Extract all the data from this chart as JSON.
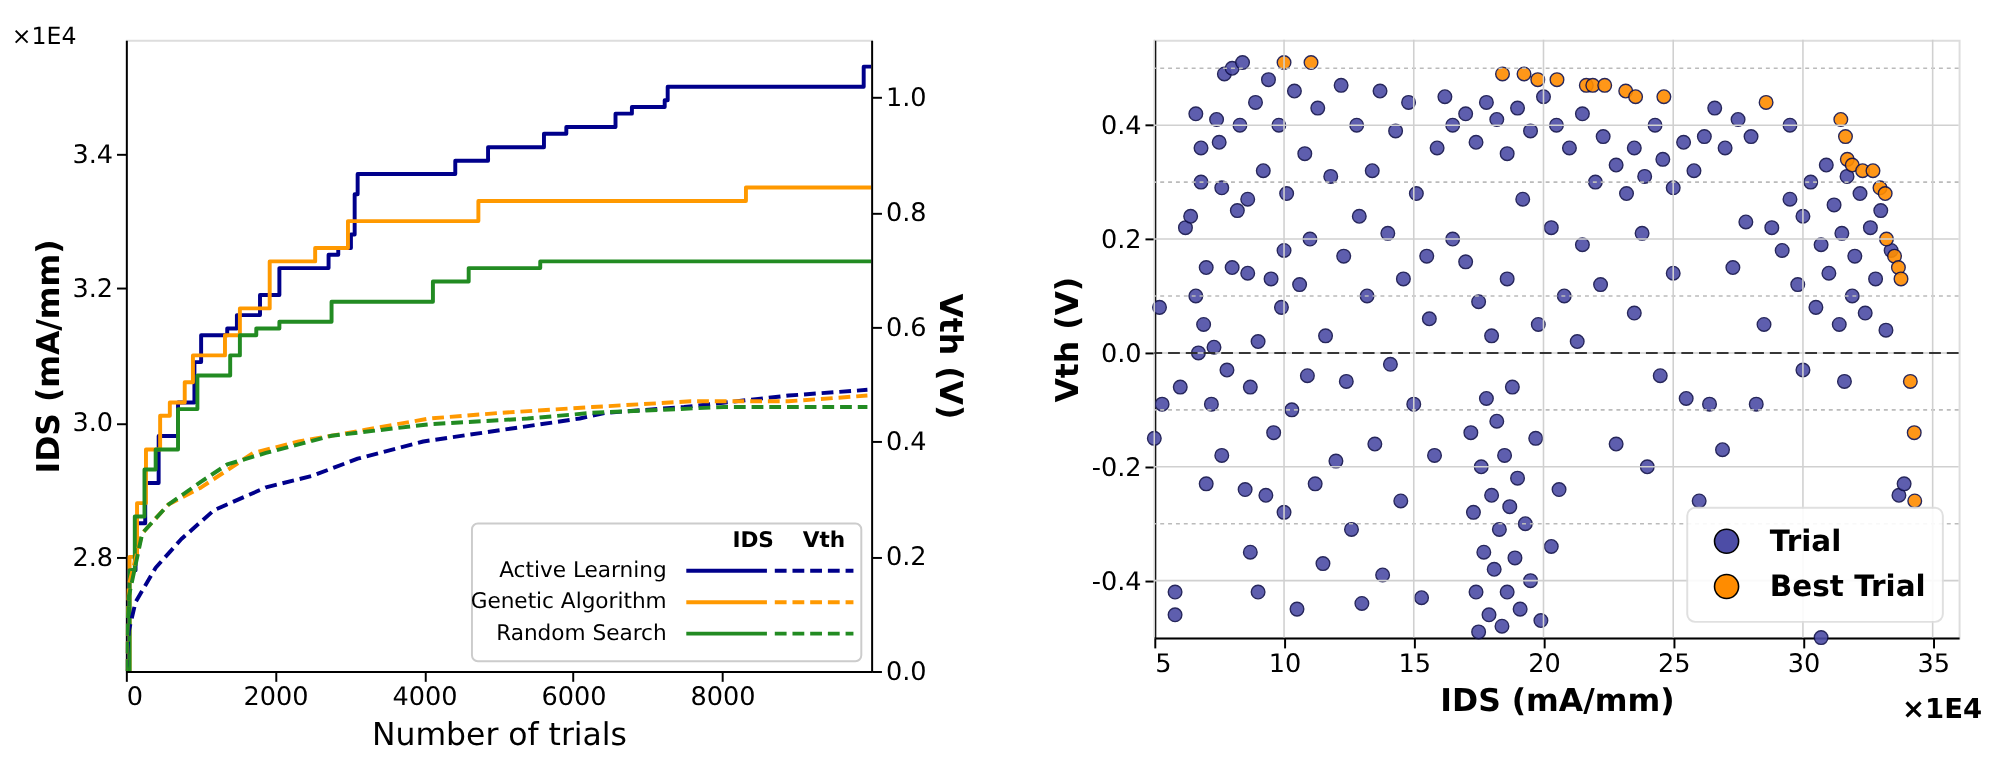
{
  "chart_data": [
    {
      "type": "step",
      "xlabel": "Number of trials",
      "ylabel": "IDS (mA/mm)",
      "y2label": "Vth (V)",
      "annotations": [
        "×1E4",
        "IDS",
        "Vth"
      ],
      "xlim": [
        0,
        10000
      ],
      "xticks": [
        0,
        2000,
        4000,
        6000,
        8000
      ],
      "ylim": [
        2.63,
        3.57
      ],
      "yticks": [
        2.8,
        {
          "value": 3.0,
          "label": "3.0"
        },
        3.2,
        3.4
      ],
      "y2lim": [
        0,
        1.1
      ],
      "y2ticks": [
        {
          "value": 0,
          "label": "0.0"
        },
        0.2,
        0.4,
        0.6,
        0.8,
        {
          "value": 1.0,
          "label": "1.0"
        }
      ],
      "grid": false,
      "legend": "bottom right",
      "series": [
        {
          "name": "Active Learning",
          "color": "#00008b",
          "x": [
            0,
            40,
            130,
            260,
            440,
            700,
            920,
            1010,
            1360,
            1490,
            1800,
            2060,
            2720,
            2850,
            3020,
            3070,
            3110,
            4420,
            4860,
            5610,
            5910,
            6570,
            6790,
            7230,
            7270,
            9900,
            10000
          ],
          "values": [
            2.63,
            2.78,
            2.85,
            2.91,
            2.98,
            3.03,
            3.09,
            3.13,
            3.14,
            3.16,
            3.19,
            3.23,
            3.25,
            3.26,
            3.28,
            3.34,
            3.37,
            3.39,
            3.41,
            3.43,
            3.44,
            3.46,
            3.47,
            3.48,
            3.5,
            3.53,
            3.53
          ]
        },
        {
          "name": "Genetic Algorithm",
          "color": "#ff9900",
          "x": [
            0,
            50,
            150,
            270,
            460,
            590,
            790,
            900,
            1330,
            1530,
            1930,
            2540,
            2980,
            4730,
            8320,
            10000
          ],
          "values": [
            2.63,
            2.8,
            2.88,
            2.96,
            3.01,
            3.03,
            3.06,
            3.1,
            3.13,
            3.17,
            3.24,
            3.26,
            3.3,
            3.33,
            3.35,
            3.35
          ]
        },
        {
          "name": "Random Search",
          "color": "#228b22",
          "x": [
            0,
            50,
            120,
            250,
            400,
            700,
            960,
            1400,
            1530,
            1750,
            2060,
            2760,
            4120,
            4600,
            5560,
            10000
          ],
          "values": [
            2.63,
            2.78,
            2.86,
            2.93,
            2.96,
            3.02,
            3.07,
            3.1,
            3.13,
            3.14,
            3.15,
            3.18,
            3.21,
            3.23,
            3.24,
            3.24
          ]
        },
        {
          "color": "#00008b",
          "type": "line",
          "line_style": "dashed",
          "axis": "y2",
          "x": [
            0,
            40,
            130,
            400,
            745,
            1180,
            1880,
            2500,
            3110,
            3990,
            5040,
            6090,
            6440,
            7490,
            8890,
            9950
          ],
          "values": [
            0,
            0.07,
            0.12,
            0.18,
            0.23,
            0.28,
            0.32,
            0.34,
            0.37,
            0.4,
            0.42,
            0.44,
            0.45,
            0.46,
            0.48,
            0.49
          ]
        },
        {
          "color": "#ff9900",
          "type": "line",
          "line_style": "dashed",
          "axis": "y2",
          "x": [
            0,
            40,
            220,
            570,
            1010,
            1710,
            2320,
            3200,
            4070,
            5040,
            6260,
            7580,
            8890,
            9950
          ],
          "values": [
            0,
            0.15,
            0.24,
            0.29,
            0.32,
            0.38,
            0.4,
            0.42,
            0.44,
            0.45,
            0.46,
            0.47,
            0.47,
            0.48
          ]
        },
        {
          "color": "#228b22",
          "type": "line",
          "line_style": "dashed",
          "axis": "y2",
          "x": [
            0,
            40,
            220,
            570,
            1010,
            1360,
            1880,
            2760,
            4070,
            5390,
            6260,
            8020,
            9950
          ],
          "values": [
            0,
            0.13,
            0.24,
            0.29,
            0.33,
            0.36,
            0.38,
            0.41,
            0.43,
            0.44,
            0.45,
            0.46,
            0.46
          ]
        }
      ]
    },
    {
      "type": "scatter",
      "xlabel": "IDS (mA/mm)",
      "ylabel": "Vth (V)",
      "annotations": [
        "×1E4"
      ],
      "xlim": [
        5,
        36
      ],
      "xticks": [
        5,
        10,
        15,
        20,
        25,
        30,
        35
      ],
      "ylim": [
        -0.5,
        0.55
      ],
      "yticks": [
        -0.4,
        {
          "value": -0.3,
          "label": null
        },
        -0.2,
        {
          "value": -0.1,
          "label": null
        },
        {
          "value": 0,
          "label": "0.0"
        },
        {
          "value": 0.1,
          "label": null
        },
        0.2,
        {
          "value": 0.3,
          "label": null
        },
        0.4,
        {
          "value": 0.5,
          "label": null
        }
      ],
      "grid": true,
      "legend": "bottom right",
      "marker": "circle",
      "ref_lines": [
        {
          "axis": "y",
          "value": 0,
          "color": "#000000",
          "line_style": "dashed"
        }
      ],
      "series": [
        {
          "name": "Trial",
          "color": "#4d4da6",
          "x": [
            5.2,
            5.3,
            5.0,
            5.8,
            5.8,
            6.0,
            6.2,
            6.4,
            6.6,
            6.6,
            6.7,
            6.8,
            6.9,
            6.8,
            7.0,
            7.0,
            7.2,
            7.3,
            7.4,
            7.5,
            7.6,
            7.6,
            7.7,
            7.8,
            8.0,
            8.0,
            8.2,
            8.3,
            8.4,
            8.5,
            8.6,
            8.6,
            8.7,
            8.7,
            8.9,
            9.0,
            9.0,
            9.2,
            9.3,
            9.4,
            9.5,
            9.6,
            9.8,
            9.9,
            10.0,
            10.0,
            10.1,
            10.3,
            10.4,
            10.5,
            10.6,
            10.8,
            10.9,
            11.0,
            11.2,
            11.3,
            11.5,
            11.6,
            11.8,
            12.0,
            12.2,
            12.3,
            12.4,
            12.6,
            12.8,
            12.9,
            13.0,
            13.2,
            13.4,
            13.5,
            13.7,
            13.8,
            14.0,
            14.1,
            14.3,
            14.5,
            14.6,
            14.8,
            15.0,
            15.1,
            15.3,
            15.5,
            15.6,
            15.8,
            15.9,
            17.2,
            17.3,
            17.4,
            17.5,
            17.6,
            17.7,
            17.8,
            17.9,
            18.0,
            18.1,
            18.2,
            18.3,
            18.4,
            18.5,
            18.6,
            18.7,
            18.8,
            18.9,
            19.0,
            19.1,
            19.3,
            19.5,
            19.7,
            19.9,
            20.3,
            20.6,
            16.2,
            16.5,
            17.0,
            17.4,
            17.8,
            18.2,
            18.6,
            19.0,
            19.5,
            20.0,
            20.5,
            21.0,
            21.5,
            22.0,
            22.3,
            22.8,
            23.2,
            23.5,
            23.9,
            24.3,
            24.6,
            25.0,
            25.4,
            25.8,
            26.2,
            26.6,
            27.0,
            27.5,
            28.0,
            16.5,
            17.0,
            17.5,
            18.0,
            18.6,
            19.2,
            19.8,
            20.3,
            20.8,
            21.3,
            21.5,
            22.2,
            22.8,
            23.5,
            23.8,
            24.0,
            24.5,
            25.0,
            25.5,
            26.0,
            26.4,
            26.9,
            27.3,
            27.8,
            28.2,
            28.5,
            28.8,
            29.2,
            29.5,
            29.8,
            30.0,
            30.3,
            30.5,
            30.7,
            30.9,
            31.0,
            31.2,
            31.4,
            31.5,
            31.7,
            31.9,
            32.0,
            32.2,
            32.4,
            32.6,
            32.8,
            33.0,
            33.2,
            33.4,
            31.6,
            30.0,
            29.5,
            30.7,
            33.7,
            33.9
          ],
          "values": [
            0.08,
            -0.09,
            -0.15,
            -0.42,
            -0.46,
            -0.06,
            0.22,
            0.24,
            0.1,
            0.42,
            0.0,
            0.36,
            0.05,
            0.3,
            0.15,
            -0.23,
            -0.09,
            0.01,
            0.41,
            0.37,
            0.29,
            -0.18,
            0.49,
            -0.03,
            0.5,
            0.15,
            0.25,
            0.4,
            0.51,
            -0.24,
            0.27,
            0.14,
            -0.06,
            -0.35,
            0.44,
            -0.42,
            0.02,
            0.32,
            -0.25,
            0.48,
            0.13,
            -0.14,
            0.4,
            0.08,
            -0.28,
            0.18,
            0.28,
            -0.1,
            0.46,
            -0.45,
            0.12,
            0.35,
            -0.04,
            0.2,
            -0.23,
            0.43,
            -0.37,
            0.03,
            0.31,
            -0.19,
            0.47,
            0.17,
            -0.05,
            -0.31,
            0.4,
            0.24,
            -0.44,
            0.1,
            0.32,
            -0.16,
            0.46,
            -0.39,
            0.21,
            -0.02,
            0.39,
            -0.26,
            0.13,
            0.44,
            -0.09,
            0.28,
            -0.43,
            0.17,
            0.06,
            -0.18,
            0.36,
            -0.14,
            -0.28,
            -0.42,
            -0.49,
            -0.2,
            -0.35,
            -0.08,
            -0.46,
            -0.25,
            -0.38,
            -0.12,
            -0.31,
            -0.48,
            -0.18,
            -0.42,
            -0.27,
            -0.06,
            -0.36,
            -0.22,
            -0.45,
            -0.3,
            -0.4,
            -0.15,
            -0.47,
            -0.34,
            -0.24,
            0.45,
            0.4,
            0.42,
            0.37,
            0.44,
            0.41,
            0.35,
            0.43,
            0.39,
            0.45,
            0.4,
            0.36,
            0.42,
            0.3,
            0.38,
            0.33,
            0.28,
            0.36,
            0.31,
            0.4,
            0.34,
            0.29,
            0.37,
            0.32,
            0.38,
            0.43,
            0.36,
            0.41,
            0.38,
            0.2,
            0.16,
            0.09,
            0.03,
            0.13,
            0.27,
            0.05,
            0.22,
            0.1,
            0.02,
            0.19,
            0.12,
            -0.16,
            0.07,
            0.21,
            -0.2,
            -0.04,
            0.14,
            -0.08,
            -0.26,
            -0.09,
            -0.17,
            0.15,
            0.23,
            -0.09,
            0.05,
            0.22,
            0.18,
            0.27,
            0.12,
            0.24,
            0.3,
            0.08,
            0.19,
            0.33,
            0.14,
            0.26,
            0.05,
            0.21,
            0.31,
            0.1,
            0.17,
            0.28,
            0.07,
            0.22,
            0.13,
            0.25,
            0.04,
            0.18,
            -0.05,
            -0.03,
            0.4,
            -0.5,
            -0.25,
            -0.23
          ]
        },
        {
          "name": "Best Trial",
          "color": "#ff8c00",
          "x": [
            10.0,
            11.04,
            18.42,
            19.25,
            19.78,
            20.52,
            21.65,
            21.9,
            22.36,
            23.17,
            23.55,
            24.64,
            28.58,
            31.46,
            31.64,
            31.71,
            31.9,
            32.3,
            32.7,
            32.97,
            33.17,
            33.22,
            33.53,
            33.68,
            33.78,
            34.14,
            34.29,
            34.31
          ],
          "values": [
            0.51,
            0.51,
            0.49,
            0.49,
            0.48,
            0.48,
            0.47,
            0.47,
            0.47,
            0.46,
            0.45,
            0.45,
            0.44,
            0.41,
            0.38,
            0.34,
            0.33,
            0.32,
            0.32,
            0.29,
            0.28,
            0.2,
            0.17,
            0.15,
            0.13,
            -0.05,
            -0.14,
            -0.26
          ]
        }
      ]
    }
  ]
}
